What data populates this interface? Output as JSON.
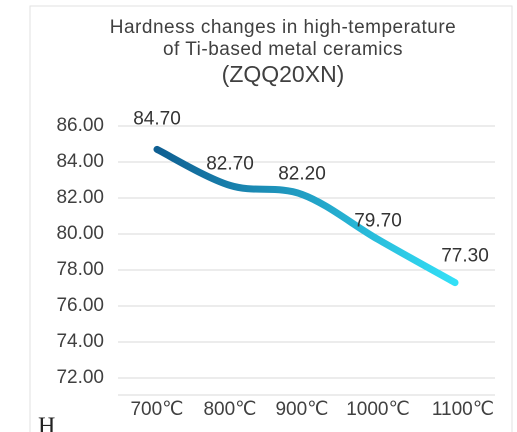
{
  "chart_data": {
    "type": "line",
    "title": [
      "Hardness changes in high-temperature",
      "of Ti-based metal ceramics",
      "(ZQQ20XN)"
    ],
    "categories": [
      "700℃",
      "800℃",
      "900℃",
      "1000℃",
      "1100℃"
    ],
    "values": [
      84.7,
      82.7,
      82.2,
      79.7,
      77.3
    ],
    "value_labels": [
      "84.70",
      "82.70",
      "82.20",
      "79.70",
      "77.30"
    ],
    "gradient": [
      "#0f5f92",
      "#33e0f7"
    ],
    "ylim": [
      72,
      86
    ],
    "yticks": [
      {
        "value": 72,
        "label": "72.00"
      },
      {
        "value": 74,
        "label": "74.00"
      },
      {
        "value": 76,
        "label": "76.00"
      },
      {
        "value": 78,
        "label": "78.00"
      },
      {
        "value": 80,
        "label": "80.00"
      },
      {
        "value": 82,
        "label": "82.00"
      },
      {
        "value": 84,
        "label": "84.00"
      },
      {
        "value": 86,
        "label": "86.00"
      }
    ],
    "grid": true
  },
  "cropped_text": "H"
}
